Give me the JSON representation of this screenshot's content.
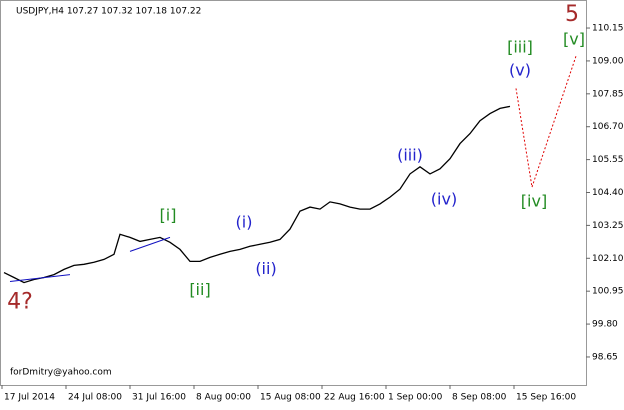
{
  "chart_data": {
    "type": "line",
    "title": "USDJPY,H4  107.27 107.32 107.18 107.22",
    "watermark": "forDmitry@yahoo.com",
    "color": "#000000",
    "x": [
      2,
      7,
      12,
      17,
      22,
      27,
      32,
      37,
      42,
      47,
      52,
      57,
      60,
      65,
      70,
      75,
      80,
      85,
      90,
      95,
      100,
      105,
      110,
      115,
      120,
      125,
      130,
      135,
      140,
      145,
      150,
      155,
      160,
      165,
      170,
      175,
      180,
      185,
      190,
      195,
      200,
      205,
      210,
      215,
      220,
      225,
      230,
      235,
      240,
      245,
      250,
      255
    ],
    "values": [
      101.6,
      101.43,
      101.25,
      101.36,
      101.43,
      101.53,
      101.71,
      101.85,
      101.89,
      101.96,
      102.06,
      102.24,
      102.94,
      102.83,
      102.69,
      102.76,
      102.83,
      102.66,
      102.41,
      101.99,
      101.99,
      102.13,
      102.24,
      102.34,
      102.41,
      102.52,
      102.59,
      102.66,
      102.76,
      103.12,
      103.75,
      103.89,
      103.82,
      104.07,
      104.0,
      103.89,
      103.82,
      103.82,
      104.0,
      104.24,
      104.52,
      105.05,
      105.3,
      105.05,
      105.23,
      105.58,
      106.11,
      106.46,
      106.91,
      107.16,
      107.34,
      107.41
    ],
    "projection": {
      "color": "#e00000",
      "x": [
        258,
        266,
        288
      ],
      "values": [
        108.04,
        104.59,
        109.17
      ]
    },
    "trendlines": [
      {
        "color": "#1010c0",
        "x": [
          5,
          35
        ],
        "values": [
          101.29,
          101.53
        ]
      },
      {
        "color": "#1010c0",
        "x": [
          65,
          85
        ],
        "values": [
          102.34,
          102.83
        ]
      }
    ],
    "annotations": [
      {
        "text": "4?",
        "x": 10,
        "y": 100.55,
        "color": "#a52a2a",
        "size": "large"
      },
      {
        "text": "[i]",
        "x": 84,
        "y": 103.57,
        "color": "#228b22",
        "size": "normal"
      },
      {
        "text": "[ii]",
        "x": 100,
        "y": 100.97,
        "color": "#228b22",
        "size": "normal"
      },
      {
        "text": "(i)",
        "x": 122,
        "y": 103.33,
        "color": "#2323cc",
        "size": "normal"
      },
      {
        "text": "(ii)",
        "x": 133,
        "y": 101.71,
        "color": "#2323cc",
        "size": "normal"
      },
      {
        "text": "(iii)",
        "x": 205,
        "y": 105.68,
        "color": "#2323cc",
        "size": "normal"
      },
      {
        "text": "(iv)",
        "x": 222,
        "y": 104.14,
        "color": "#2323cc",
        "size": "normal"
      },
      {
        "text": "(v)",
        "x": 260,
        "y": 108.64,
        "color": "#2323cc",
        "size": "normal"
      },
      {
        "text": "[iii]",
        "x": 260,
        "y": 109.45,
        "color": "#228b22",
        "size": "normal"
      },
      {
        "text": "[iv]",
        "x": 267,
        "y": 104.07,
        "color": "#228b22",
        "size": "normal"
      },
      {
        "text": "[v]",
        "x": 287,
        "y": 109.73,
        "color": "#228b22",
        "size": "normal"
      },
      {
        "text": "5",
        "x": 286,
        "y": 110.61,
        "color": "#a52a2a",
        "size": "large"
      }
    ],
    "xlim": [
      0,
      293
    ],
    "xticks": [
      {
        "value": 1,
        "label": "17 Jul 2014"
      },
      {
        "value": 33,
        "label": "24 Jul 08:00"
      },
      {
        "value": 65,
        "label": "31 Jul 16:00"
      },
      {
        "value": 97,
        "label": "8 Aug 00:00"
      },
      {
        "value": 129,
        "label": "15 Aug 08:00"
      },
      {
        "value": 161,
        "label": "22 Aug 16:00"
      },
      {
        "value": 193,
        "label": "1 Sep 00:00"
      },
      {
        "value": 225,
        "label": "8 Sep 08:00"
      },
      {
        "value": 257,
        "label": "15 Sep 16:00"
      }
    ],
    "ylim": [
      97.67,
      111.13
    ],
    "yticks": [
      {
        "value": 110.15,
        "label": "110.15"
      },
      {
        "value": 109,
        "label": "109.00"
      },
      {
        "value": 107.85,
        "label": "107.85"
      },
      {
        "value": 106.7,
        "label": "106.70"
      },
      {
        "value": 105.55,
        "label": "105.55"
      },
      {
        "value": 104.4,
        "label": "104.40"
      },
      {
        "value": 103.25,
        "label": "103.25"
      },
      {
        "value": 102.1,
        "label": "102.10"
      },
      {
        "value": 100.95,
        "label": "100.95"
      },
      {
        "value": 99.8,
        "label": "99.80"
      },
      {
        "value": 98.65,
        "label": "98.65"
      }
    ]
  }
}
